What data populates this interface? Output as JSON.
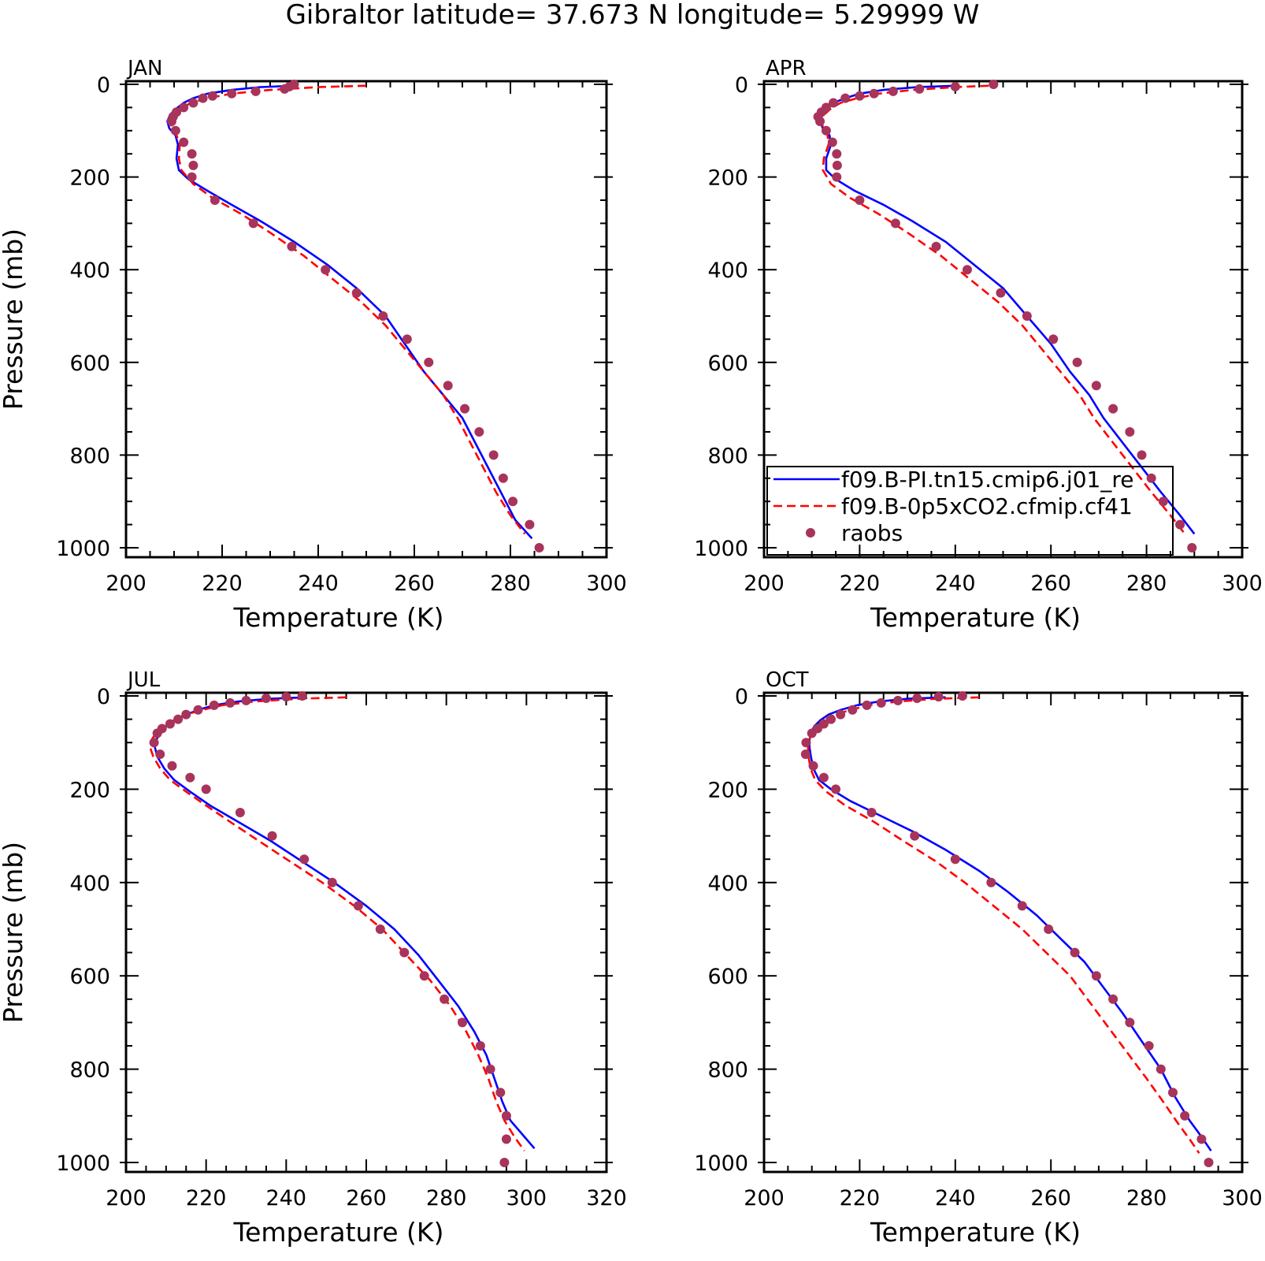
{
  "title": "Gibraltor  latitude= 37.673 N longitude= 5.29999 W",
  "colors": {
    "model_pi": "#0000ff",
    "model_co2": "#ff0000",
    "raobs": "#a8335b",
    "axes": "#000000"
  },
  "legend": {
    "placement": "lower-right of APR panel",
    "entries": [
      {
        "label": "f09.B-PI.tn15.cmip6.j01_re",
        "style": "solid-line",
        "color": "#0000ff"
      },
      {
        "label": "f09.B-0p5xCO2.cfmip.cf41",
        "style": "dashed-line",
        "color": "#ff0000"
      },
      {
        "label": "raobs",
        "style": "marker",
        "color": "#a8335b"
      }
    ]
  },
  "chart_data": [
    {
      "type": "line",
      "panel": "JAN",
      "xlabel": "Temperature (K)",
      "ylabel": "Pressure (mb)",
      "xlim": [
        200,
        300
      ],
      "xticks": [
        200,
        220,
        240,
        260,
        280,
        300
      ],
      "ylim": [
        1000,
        0
      ],
      "yticks": [
        0,
        200,
        400,
        600,
        800,
        1000
      ],
      "series": [
        {
          "name": "f09.B-PI.tn15.cmip6.j01_re",
          "style": "solid",
          "x": [
            235,
            228,
            222,
            217,
            214,
            212,
            210.5,
            209.2,
            208.6,
            209,
            210.3,
            210.8,
            210.5,
            211,
            213,
            217,
            222,
            228,
            235,
            242,
            248,
            254,
            258,
            262,
            266,
            270,
            272,
            274,
            276,
            278,
            281,
            284.5
          ],
          "y": [
            3,
            6,
            12,
            20,
            30,
            40,
            52,
            65,
            80,
            95,
            110,
            130,
            160,
            185,
            205,
            230,
            260,
            295,
            340,
            390,
            440,
            500,
            560,
            620,
            670,
            720,
            760,
            800,
            840,
            880,
            940,
            980
          ]
        },
        {
          "name": "f09.B-0p5xCO2.cfmip.cf41",
          "style": "dashed",
          "x": [
            250,
            240,
            230,
            222,
            217,
            213.5,
            211.5,
            210.2,
            209.4,
            209.5,
            210.5,
            211.2,
            211,
            211.5,
            214,
            218,
            224,
            230,
            237,
            243,
            249,
            254,
            258,
            262,
            266,
            269,
            271,
            273,
            275,
            277,
            280,
            283
          ],
          "y": [
            3,
            6,
            12,
            20,
            30,
            40,
            52,
            65,
            80,
            95,
            110,
            130,
            160,
            185,
            215,
            245,
            280,
            320,
            370,
            420,
            470,
            520,
            570,
            620,
            670,
            720,
            760,
            800,
            840,
            880,
            930,
            970
          ]
        },
        {
          "name": "raobs",
          "style": "marker",
          "x": [
            235,
            234,
            233,
            227,
            222,
            218,
            216,
            214,
            212,
            210.5,
            209.8,
            209.5,
            210.3,
            212,
            213.7,
            214,
            213.7,
            218.5,
            226.5,
            234.5,
            241.5,
            248,
            253.5,
            258.5,
            263,
            267,
            270.5,
            273.5,
            276.5,
            278.5,
            280.5,
            284,
            286
          ],
          "y": [
            0,
            5,
            10,
            15,
            20,
            25,
            30,
            40,
            50,
            60,
            70,
            80,
            100,
            125,
            150,
            175,
            200,
            250,
            300,
            350,
            400,
            450,
            500,
            550,
            600,
            650,
            700,
            750,
            800,
            850,
            900,
            950,
            1000
          ]
        }
      ]
    },
    {
      "type": "line",
      "panel": "APR",
      "xlabel": "Temperature (K)",
      "ylabel": "",
      "xlim": [
        200,
        300
      ],
      "xticks": [
        200,
        220,
        240,
        260,
        280,
        300
      ],
      "ylim": [
        1000,
        0
      ],
      "yticks": [
        0,
        200,
        400,
        600,
        800,
        1000
      ],
      "series": [
        {
          "name": "f09.B-PI.tn15.cmip6.j01_re",
          "style": "solid",
          "x": [
            240,
            232,
            225,
            220,
            217,
            214.5,
            213,
            212,
            211.7,
            212.3,
            213.7,
            214,
            213,
            213,
            215,
            219,
            225,
            231,
            238,
            244,
            250,
            255,
            260,
            264,
            268,
            271,
            274,
            277,
            280,
            283,
            287,
            290
          ],
          "y": [
            3,
            6,
            12,
            20,
            30,
            40,
            52,
            65,
            80,
            95,
            110,
            130,
            160,
            185,
            205,
            230,
            260,
            295,
            340,
            390,
            440,
            500,
            560,
            620,
            670,
            720,
            760,
            800,
            840,
            880,
            930,
            970
          ]
        },
        {
          "name": "f09.B-0p5xCO2.cfmip.cf41",
          "style": "dashed",
          "x": [
            247,
            240,
            231,
            224,
            219.5,
            216,
            214,
            212.6,
            212,
            212.4,
            213.3,
            213.5,
            212.5,
            212.3,
            214,
            218,
            224,
            230,
            237,
            243,
            249,
            254,
            258,
            262,
            266,
            269,
            272,
            275,
            278,
            281,
            285,
            288
          ],
          "y": [
            3,
            6,
            12,
            20,
            30,
            40,
            52,
            65,
            80,
            95,
            110,
            130,
            160,
            185,
            215,
            245,
            280,
            320,
            370,
            420,
            470,
            520,
            570,
            620,
            670,
            720,
            760,
            800,
            840,
            880,
            930,
            970
          ]
        },
        {
          "name": "raobs",
          "style": "marker",
          "x": [
            248,
            240,
            232.5,
            227,
            223,
            220,
            217,
            214.5,
            213,
            212,
            211.3,
            211.7,
            213,
            214.3,
            215.2,
            215.3,
            215.2,
            220,
            227.5,
            236,
            242.5,
            249.5,
            255,
            260.5,
            265.5,
            269.5,
            273,
            276.5,
            279,
            281,
            283.5,
            287,
            289.5
          ],
          "y": [
            0,
            5,
            10,
            15,
            20,
            25,
            30,
            40,
            50,
            60,
            70,
            80,
            100,
            125,
            150,
            175,
            200,
            250,
            300,
            350,
            400,
            450,
            500,
            550,
            600,
            650,
            700,
            750,
            800,
            850,
            900,
            950,
            1000
          ]
        }
      ]
    },
    {
      "type": "line",
      "panel": "JUL",
      "xlabel": "Temperature (K)",
      "ylabel": "Pressure (mb)",
      "xlim": [
        200,
        320
      ],
      "xticks": [
        200,
        220,
        240,
        260,
        280,
        300,
        320
      ],
      "ylim": [
        1000,
        0
      ],
      "yticks": [
        0,
        200,
        400,
        600,
        800,
        1000
      ],
      "series": [
        {
          "name": "f09.B-PI.tn15.cmip6.j01_re",
          "style": "solid",
          "x": [
            245,
            236,
            228,
            222,
            218,
            215,
            212,
            210,
            208.5,
            207.5,
            207.2,
            207.8,
            209.5,
            212,
            216,
            221,
            228,
            236,
            244,
            252,
            260,
            267,
            273,
            278,
            283,
            287,
            290,
            292,
            294,
            296,
            299,
            302
          ],
          "y": [
            3,
            6,
            12,
            20,
            30,
            40,
            52,
            65,
            80,
            95,
            110,
            130,
            155,
            180,
            205,
            235,
            270,
            310,
            355,
            400,
            450,
            500,
            555,
            610,
            665,
            720,
            770,
            820,
            870,
            910,
            940,
            970
          ]
        },
        {
          "name": "f09.B-0p5xCO2.cfmip.cf41",
          "style": "dashed",
          "x": [
            255,
            243,
            232,
            224,
            219,
            215,
            212,
            209.5,
            207.5,
            206.3,
            206,
            206.8,
            208.5,
            211,
            215,
            220,
            226,
            233,
            241,
            249,
            257,
            264,
            270,
            276,
            281,
            285,
            288,
            290.5,
            292.5,
            294.5,
            297,
            299.5
          ],
          "y": [
            3,
            6,
            12,
            20,
            30,
            40,
            52,
            65,
            80,
            95,
            110,
            130,
            155,
            180,
            205,
            235,
            270,
            310,
            355,
            400,
            450,
            500,
            555,
            610,
            665,
            720,
            770,
            820,
            870,
            910,
            945,
            975
          ]
        },
        {
          "name": "raobs",
          "style": "marker",
          "x": [
            244,
            240,
            235,
            230,
            226,
            222,
            218,
            215,
            213,
            211,
            209,
            207.8,
            207,
            208.5,
            211.5,
            216,
            220,
            228.5,
            236.5,
            244.5,
            251.5,
            258,
            263.5,
            269.5,
            274.5,
            279.5,
            284,
            288.5,
            291,
            293.5,
            295,
            295,
            294.5
          ],
          "y": [
            0,
            2,
            5,
            10,
            15,
            20,
            30,
            40,
            50,
            60,
            70,
            80,
            100,
            125,
            150,
            175,
            200,
            250,
            300,
            350,
            400,
            450,
            500,
            550,
            600,
            650,
            700,
            750,
            800,
            850,
            900,
            950,
            1000
          ]
        }
      ]
    },
    {
      "type": "line",
      "panel": "OCT",
      "xlabel": "Temperature (K)",
      "ylabel": "",
      "xlim": [
        200,
        300
      ],
      "xticks": [
        200,
        220,
        240,
        260,
        280,
        300
      ],
      "ylim": [
        1000,
        0
      ],
      "yticks": [
        0,
        200,
        400,
        600,
        800,
        1000
      ],
      "series": [
        {
          "name": "f09.B-PI.tn15.cmip6.j01_re",
          "style": "solid",
          "x": [
            238,
            230,
            224,
            219.5,
            216,
            213.5,
            211.8,
            210.5,
            209.8,
            209.5,
            209.5,
            209.8,
            210.3,
            211.5,
            214,
            218,
            224,
            231,
            238,
            245,
            251,
            257,
            262,
            267,
            271,
            275,
            279,
            283,
            286,
            289,
            291.5,
            293.5
          ],
          "y": [
            3,
            6,
            12,
            20,
            30,
            40,
            52,
            65,
            80,
            95,
            110,
            130,
            155,
            180,
            200,
            225,
            255,
            290,
            330,
            375,
            420,
            470,
            520,
            570,
            625,
            680,
            740,
            800,
            860,
            910,
            945,
            975
          ]
        },
        {
          "name": "f09.B-0p5xCO2.cfmip.cf41",
          "style": "dashed",
          "x": [
            245,
            236,
            228,
            222,
            218,
            215,
            212.5,
            211,
            210,
            209.4,
            209.2,
            209.3,
            209.7,
            210.7,
            213,
            217,
            223,
            229,
            236,
            242,
            248,
            254,
            259,
            264,
            268,
            272,
            276,
            280,
            283.5,
            286.5,
            289,
            291
          ],
          "y": [
            3,
            6,
            12,
            20,
            30,
            40,
            52,
            65,
            80,
            95,
            110,
            130,
            155,
            180,
            205,
            235,
            270,
            310,
            355,
            400,
            450,
            500,
            550,
            600,
            655,
            710,
            765,
            820,
            870,
            915,
            950,
            980
          ]
        },
        {
          "name": "raobs",
          "style": "marker",
          "x": [
            241.5,
            236.5,
            232,
            228,
            224.5,
            221.5,
            218.5,
            216,
            214,
            212.5,
            211.2,
            210,
            208.8,
            208.7,
            210.3,
            212.5,
            215,
            222.5,
            231.5,
            240,
            247.5,
            254,
            259.5,
            265,
            269.5,
            273,
            276.5,
            280.5,
            283,
            285.5,
            288,
            291.5,
            293
          ],
          "y": [
            0,
            2,
            5,
            10,
            15,
            20,
            30,
            40,
            50,
            60,
            70,
            80,
            100,
            125,
            150,
            175,
            200,
            250,
            300,
            350,
            400,
            450,
            500,
            550,
            600,
            650,
            700,
            750,
            800,
            850,
            900,
            950,
            1000
          ]
        }
      ]
    }
  ]
}
